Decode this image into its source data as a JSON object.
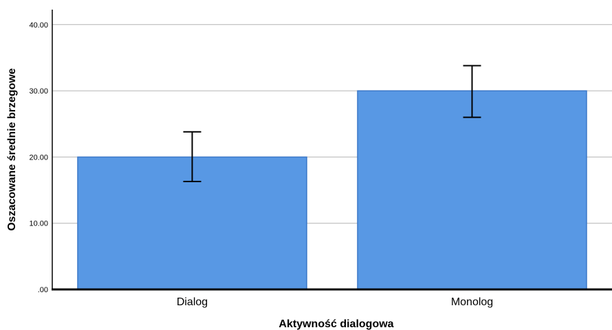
{
  "chart_data": {
    "type": "bar",
    "title": "",
    "xlabel": "Aktywność dialogowa",
    "ylabel": "Oszacowane średnie brzegowe",
    "categories": [
      "Dialog",
      "Monolog"
    ],
    "values": [
      20.0,
      30.0
    ],
    "error_low": [
      16.3,
      26.0
    ],
    "error_high": [
      23.8,
      33.8
    ],
    "ylim": [
      0,
      42
    ],
    "yticks": [
      0,
      10,
      20,
      30,
      40
    ],
    "ytick_labels": [
      ".00",
      "10.00",
      "20.00",
      "30.00",
      "40.00"
    ],
    "grid": true,
    "legend": "none",
    "colors": {
      "bar": "#5898e4",
      "bar_edge": "#3b78c8",
      "grid": "#b4b4b4",
      "axis": "#000000"
    }
  }
}
